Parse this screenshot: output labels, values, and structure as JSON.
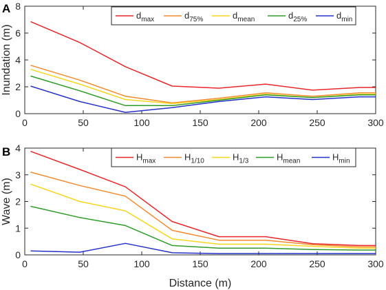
{
  "chart_data": [
    {
      "panel_label": "A",
      "type": "line",
      "ylabel": "Inundation (m)",
      "xlabel": "",
      "xlim": [
        0,
        300
      ],
      "ylim": [
        0,
        8
      ],
      "xticks": [
        "0",
        "50",
        "100",
        "150",
        "200",
        "250",
        "300"
      ],
      "yticks": [
        "0",
        "2",
        "4",
        "6",
        "8"
      ],
      "legend_position": "top-right",
      "x": [
        5,
        47,
        86,
        126,
        166,
        206,
        246,
        286,
        300
      ],
      "series": [
        {
          "label": "d",
          "sub": "max",
          "color": "#e8262b",
          "values": [
            6.85,
            5.3,
            3.5,
            2.05,
            1.9,
            2.2,
            1.75,
            1.95,
            1.95
          ]
        },
        {
          "label": "d",
          "sub": "75%",
          "color": "#f28a2e",
          "values": [
            3.6,
            2.5,
            1.3,
            0.8,
            1.15,
            1.55,
            1.3,
            1.55,
            1.55
          ]
        },
        {
          "label": "d",
          "sub": "mean",
          "color": "#f5d51e",
          "values": [
            3.3,
            2.2,
            1.05,
            0.75,
            1.05,
            1.45,
            1.2,
            1.45,
            1.45
          ]
        },
        {
          "label": "d",
          "sub": "25%",
          "color": "#2f9a28",
          "values": [
            2.8,
            1.7,
            0.6,
            0.6,
            1.0,
            1.4,
            1.2,
            1.4,
            1.4
          ]
        },
        {
          "label": "d",
          "sub": "min",
          "color": "#2530c8",
          "values": [
            2.05,
            0.9,
            0.1,
            0.45,
            0.9,
            1.25,
            1.05,
            1.25,
            1.25
          ]
        }
      ]
    },
    {
      "panel_label": "B",
      "type": "line",
      "ylabel": "Wave (m)",
      "xlabel": "Distance (m)",
      "xlim": [
        0,
        300
      ],
      "ylim": [
        0,
        4
      ],
      "xticks": [
        "0",
        "50",
        "100",
        "150",
        "200",
        "250",
        "300"
      ],
      "yticks": [
        "0",
        "1",
        "2",
        "3",
        "4"
      ],
      "legend_position": "top-right",
      "x": [
        5,
        47,
        86,
        126,
        166,
        206,
        246,
        286,
        300
      ],
      "series": [
        {
          "label": "H",
          "sub": "max",
          "color": "#e8262b",
          "values": [
            3.88,
            3.2,
            2.55,
            1.25,
            0.68,
            0.68,
            0.42,
            0.35,
            0.35
          ]
        },
        {
          "label": "H",
          "sub": "1/10",
          "color": "#f28a2e",
          "values": [
            3.1,
            2.6,
            2.2,
            0.92,
            0.55,
            0.55,
            0.38,
            0.3,
            0.3
          ]
        },
        {
          "label": "H",
          "sub": "1/3",
          "color": "#f5d51e",
          "values": [
            2.65,
            2.0,
            1.65,
            0.6,
            0.4,
            0.4,
            0.32,
            0.25,
            0.25
          ]
        },
        {
          "label": "H",
          "sub": "mean",
          "color": "#2f9a28",
          "values": [
            1.82,
            1.4,
            1.1,
            0.35,
            0.25,
            0.25,
            0.2,
            0.18,
            0.18
          ]
        },
        {
          "label": "H",
          "sub": "min",
          "color": "#2530c8",
          "values": [
            0.15,
            0.1,
            0.43,
            0.08,
            0.05,
            0.05,
            0.05,
            0.05,
            0.05
          ]
        }
      ]
    }
  ]
}
